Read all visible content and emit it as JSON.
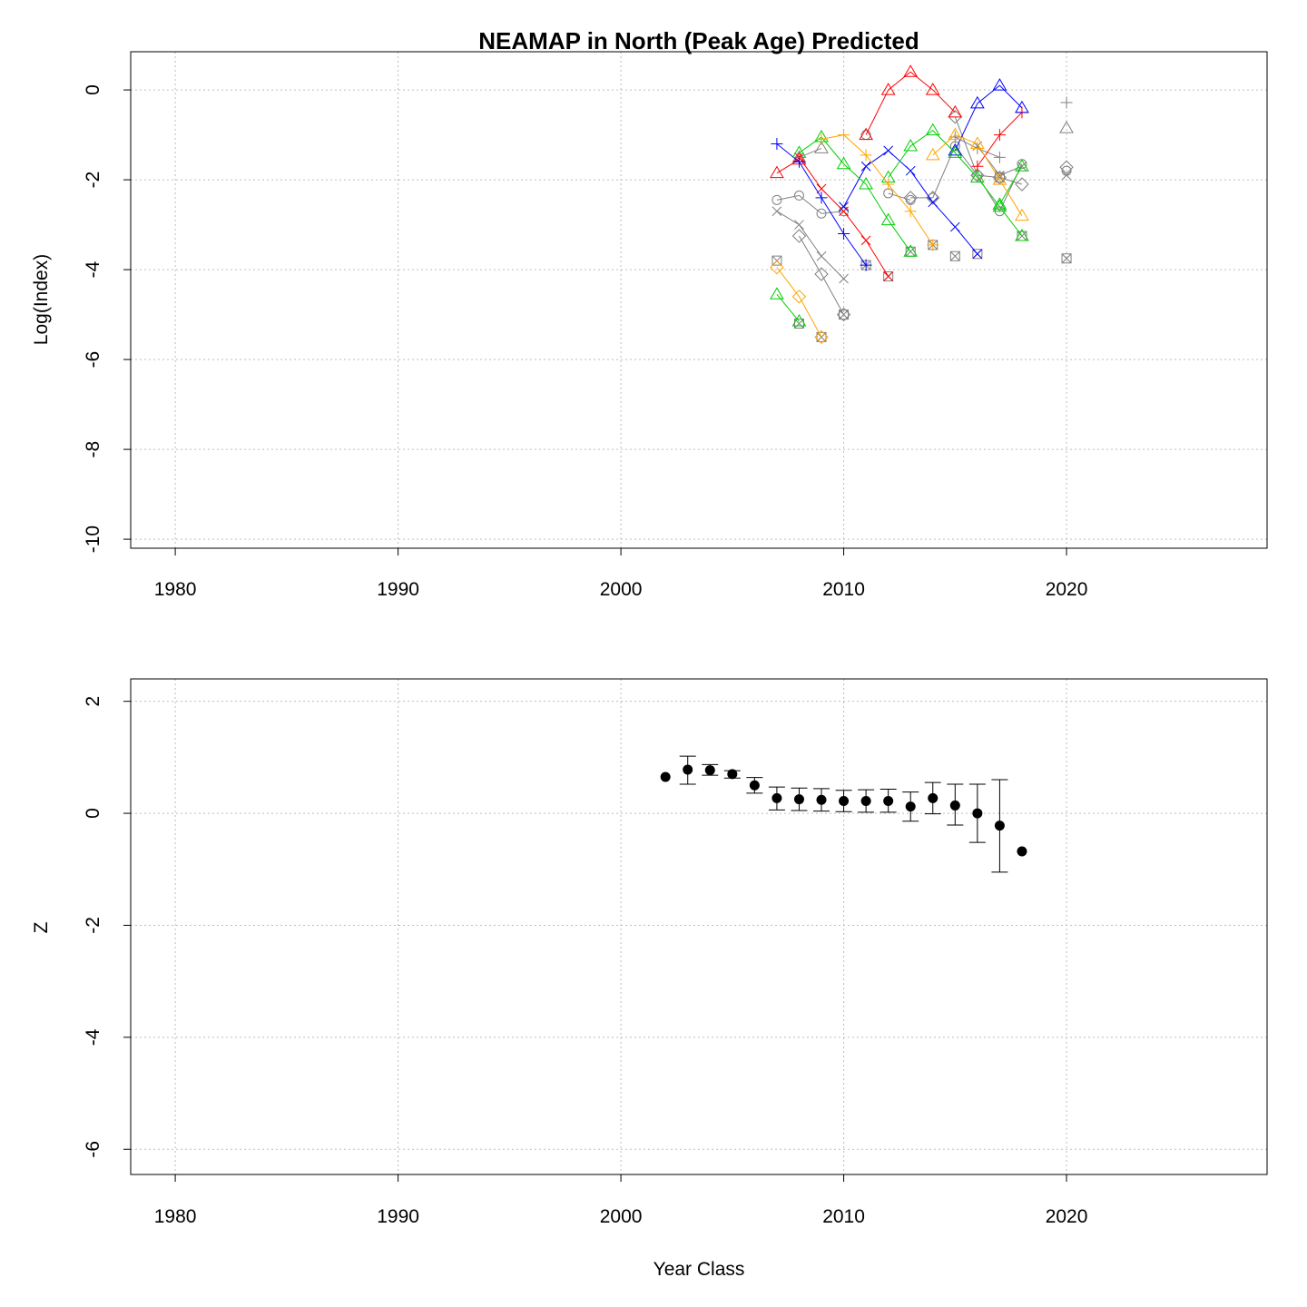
{
  "chart_data": [
    {
      "type": "line",
      "title": "NEAMAP in North (Peak Age) Predicted",
      "xlabel": "",
      "ylabel": "Log(Index)",
      "xlim": [
        1978,
        2029
      ],
      "ylim": [
        -10.2,
        0.85
      ],
      "xticks": [
        1980,
        1990,
        2000,
        2010,
        2020
      ],
      "yticks": [
        0,
        -2,
        -4,
        -6,
        -8,
        -10
      ],
      "grid": true,
      "series": [
        {
          "color": "#808080",
          "pch": "circle",
          "points": [
            [
              2007,
              -2.45
            ],
            [
              2008,
              -2.35
            ],
            [
              2009,
              -2.75
            ],
            [
              2010,
              -2.7
            ]
          ]
        },
        {
          "color": "#808080",
          "pch": "circle",
          "points": [
            [
              2011,
              -1.0
            ]
          ]
        },
        {
          "color": "#808080",
          "pch": "circle",
          "points": [
            [
              2012,
              -2.3
            ],
            [
              2013,
              -2.45
            ]
          ]
        },
        {
          "color": "#808080",
          "pch": "circle",
          "points": [
            [
              2014,
              -2.4
            ],
            [
              2015,
              -1.25
            ],
            [
              2016,
              -1.9
            ],
            [
              2017,
              -2.7
            ],
            [
              2018,
              -1.65
            ]
          ]
        },
        {
          "color": "#808080",
          "pch": "circle",
          "points": [
            [
              2020,
              -1.8
            ]
          ]
        },
        {
          "color": "#808080",
          "pch": "triangle",
          "points": [
            [
              2020,
              -0.85
            ]
          ]
        },
        {
          "color": "#808080",
          "pch": "plus",
          "points": [
            [
              2020,
              -0.28
            ]
          ]
        },
        {
          "color": "#808080",
          "pch": "x",
          "points": [
            [
              2020,
              -1.9
            ]
          ]
        },
        {
          "color": "#808080",
          "pch": "diamond",
          "points": [
            [
              2020,
              -1.72
            ]
          ]
        },
        {
          "color": "#808080",
          "pch": "square-x",
          "points": [
            [
              2020,
              -3.75
            ]
          ]
        },
        {
          "color": "#808080",
          "pch": "x",
          "points": [
            [
              2007,
              -2.7
            ],
            [
              2008,
              -3.0
            ],
            [
              2009,
              -3.7
            ],
            [
              2010,
              -4.2
            ]
          ]
        },
        {
          "color": "#808080",
          "pch": "diamond",
          "points": [
            [
              2008,
              -3.25
            ],
            [
              2009,
              -4.1
            ],
            [
              2010,
              -5.0
            ]
          ]
        },
        {
          "color": "#808080",
          "pch": "diamond",
          "points": [
            [
              2013,
              -2.4
            ],
            [
              2014,
              -2.4
            ]
          ]
        },
        {
          "color": "#808080",
          "pch": "plus",
          "points": [
            [
              2015,
              -1.05
            ],
            [
              2016,
              -1.3
            ],
            [
              2017,
              -1.5
            ]
          ]
        },
        {
          "color": "#808080",
          "pch": "x",
          "points": [
            [
              2016,
              -1.25
            ],
            [
              2017,
              -1.9
            ],
            [
              2018,
              -1.7
            ]
          ]
        },
        {
          "color": "#808080",
          "pch": "diamond",
          "points": [
            [
              2015,
              -0.6
            ],
            [
              2016,
              -1.9
            ],
            [
              2017,
              -1.95
            ],
            [
              2018,
              -2.1
            ]
          ]
        },
        {
          "color": "#808080",
          "pch": "triangle",
          "points": [
            [
              2008,
              -1.5
            ],
            [
              2009,
              -1.3
            ]
          ]
        },
        {
          "color": "#808080",
          "pch": "square-x",
          "points": [
            [
              2007,
              -3.8
            ]
          ]
        },
        {
          "color": "#808080",
          "pch": "square-x",
          "points": [
            [
              2008,
              -5.2
            ]
          ]
        },
        {
          "color": "#808080",
          "pch": "square-x",
          "points": [
            [
              2009,
              -5.5
            ]
          ]
        },
        {
          "color": "#808080",
          "pch": "square-x",
          "points": [
            [
              2010,
              -5.0
            ]
          ]
        },
        {
          "color": "#808080",
          "pch": "square-x",
          "points": [
            [
              2011,
              -3.9
            ]
          ]
        },
        {
          "color": "#808080",
          "pch": "square-x",
          "points": [
            [
              2012,
              -4.15
            ]
          ]
        },
        {
          "color": "#808080",
          "pch": "square-x",
          "points": [
            [
              2013,
              -3.6
            ]
          ]
        },
        {
          "color": "#808080",
          "pch": "square-x",
          "points": [
            [
              2014,
              -3.45
            ]
          ]
        },
        {
          "color": "#808080",
          "pch": "square-x",
          "points": [
            [
              2015,
              -3.7
            ]
          ]
        },
        {
          "color": "#808080",
          "pch": "square-x",
          "points": [
            [
              2016,
              -3.65
            ]
          ]
        },
        {
          "color": "#808080",
          "pch": "square-x",
          "points": [
            [
              2017,
              -1.95
            ]
          ]
        },
        {
          "color": "#808080",
          "pch": "square-x",
          "points": [
            [
              2018,
              -3.25
            ]
          ]
        },
        {
          "color": "#ff0000",
          "pch": "triangle",
          "points": [
            [
              2007,
              -1.85
            ],
            [
              2008,
              -1.55
            ]
          ]
        },
        {
          "color": "#ff0000",
          "pch": "triangle",
          "points": [
            [
              2011,
              -1.0
            ],
            [
              2012,
              0.0
            ],
            [
              2013,
              0.4
            ],
            [
              2014,
              0.0
            ],
            [
              2015,
              -0.5
            ]
          ]
        },
        {
          "color": "#ff0000",
          "pch": "plus",
          "points": [
            [
              2016,
              -1.7
            ],
            [
              2017,
              -1.0
            ],
            [
              2018,
              -0.5
            ]
          ]
        },
        {
          "color": "#ff0000",
          "pch": "x",
          "points": [
            [
              2008,
              -1.5
            ],
            [
              2009,
              -2.2
            ],
            [
              2010,
              -2.7
            ],
            [
              2011,
              -3.35
            ],
            [
              2012,
              -4.15
            ]
          ]
        },
        {
          "color": "#0000ff",
          "pch": "plus",
          "points": [
            [
              2007,
              -1.2
            ],
            [
              2008,
              -1.6
            ],
            [
              2009,
              -2.4
            ],
            [
              2010,
              -3.2
            ],
            [
              2011,
              -3.9
            ]
          ]
        },
        {
          "color": "#0000ff",
          "pch": "x",
          "points": [
            [
              2010,
              -2.6
            ],
            [
              2011,
              -1.7
            ],
            [
              2012,
              -1.35
            ],
            [
              2013,
              -1.8
            ],
            [
              2014,
              -2.5
            ],
            [
              2015,
              -3.05
            ],
            [
              2016,
              -3.65
            ]
          ]
        },
        {
          "color": "#0000ff",
          "pch": "triangle",
          "points": [
            [
              2015,
              -1.35
            ],
            [
              2016,
              -0.3
            ],
            [
              2017,
              0.1
            ],
            [
              2018,
              -0.4
            ]
          ]
        },
        {
          "color": "#00cc00",
          "pch": "triangle",
          "points": [
            [
              2007,
              -4.55
            ],
            [
              2008,
              -5.15
            ]
          ]
        },
        {
          "color": "#00cc00",
          "pch": "triangle",
          "points": [
            [
              2008,
              -1.4
            ],
            [
              2009,
              -1.05
            ],
            [
              2010,
              -1.65
            ],
            [
              2011,
              -2.1
            ],
            [
              2012,
              -2.9
            ],
            [
              2013,
              -3.6
            ]
          ]
        },
        {
          "color": "#00cc00",
          "pch": "triangle",
          "points": [
            [
              2012,
              -1.95
            ],
            [
              2013,
              -1.25
            ],
            [
              2014,
              -0.9
            ],
            [
              2015,
              -1.4
            ],
            [
              2016,
              -1.95
            ],
            [
              2017,
              -2.6
            ],
            [
              2018,
              -3.25
            ]
          ]
        },
        {
          "color": "#00cc00",
          "pch": "triangle",
          "points": [
            [
              2017,
              -2.55
            ],
            [
              2018,
              -1.7
            ]
          ]
        },
        {
          "color": "#ffa500",
          "pch": "diamond",
          "points": [
            [
              2007,
              -3.95
            ],
            [
              2008,
              -4.6
            ],
            [
              2009,
              -5.5
            ]
          ]
        },
        {
          "color": "#ffa500",
          "pch": "plus",
          "points": [
            [
              2009,
              -1.1
            ],
            [
              2010,
              -1.0
            ],
            [
              2011,
              -1.45
            ],
            [
              2012,
              -2.1
            ],
            [
              2013,
              -2.7
            ],
            [
              2014,
              -3.45
            ]
          ]
        },
        {
          "color": "#ffa500",
          "pch": "triangle",
          "points": [
            [
              2014,
              -1.45
            ],
            [
              2015,
              -1.0
            ],
            [
              2016,
              -1.2
            ],
            [
              2017,
              -2.0
            ],
            [
              2018,
              -2.8
            ]
          ]
        }
      ]
    },
    {
      "type": "scatter",
      "title": "",
      "xlabel": "Year Class",
      "ylabel": "Z",
      "xlim": [
        1978,
        2029
      ],
      "ylim": [
        -6.45,
        2.4
      ],
      "xticks": [
        1980,
        1990,
        2000,
        2010,
        2020
      ],
      "yticks": [
        2,
        0,
        -2,
        -4,
        -6
      ],
      "grid": true,
      "points": [
        {
          "x": 2002,
          "y": 0.65
        },
        {
          "x": 2003,
          "y": 0.78,
          "lo": 0.52,
          "hi": 1.02
        },
        {
          "x": 2004,
          "y": 0.77,
          "lo": 0.68,
          "hi": 0.87
        },
        {
          "x": 2005,
          "y": 0.7,
          "lo": 0.63,
          "hi": 0.76
        },
        {
          "x": 2006,
          "y": 0.5,
          "lo": 0.36,
          "hi": 0.64
        },
        {
          "x": 2007,
          "y": 0.27,
          "lo": 0.06,
          "hi": 0.47
        },
        {
          "x": 2008,
          "y": 0.25,
          "lo": 0.05,
          "hi": 0.45
        },
        {
          "x": 2009,
          "y": 0.24,
          "lo": 0.04,
          "hi": 0.44
        },
        {
          "x": 2010,
          "y": 0.22,
          "lo": 0.03,
          "hi": 0.41
        },
        {
          "x": 2011,
          "y": 0.22,
          "lo": 0.02,
          "hi": 0.42
        },
        {
          "x": 2012,
          "y": 0.22,
          "lo": 0.02,
          "hi": 0.43
        },
        {
          "x": 2013,
          "y": 0.12,
          "lo": -0.14,
          "hi": 0.38
        },
        {
          "x": 2014,
          "y": 0.27,
          "lo": -0.01,
          "hi": 0.55
        },
        {
          "x": 2015,
          "y": 0.14,
          "lo": -0.21,
          "hi": 0.52
        },
        {
          "x": 2016,
          "y": 0.0,
          "lo": -0.52,
          "hi": 0.52
        },
        {
          "x": 2017,
          "y": -0.22,
          "lo": -1.05,
          "hi": 0.6
        },
        {
          "x": 2018,
          "y": -0.68
        }
      ]
    }
  ]
}
